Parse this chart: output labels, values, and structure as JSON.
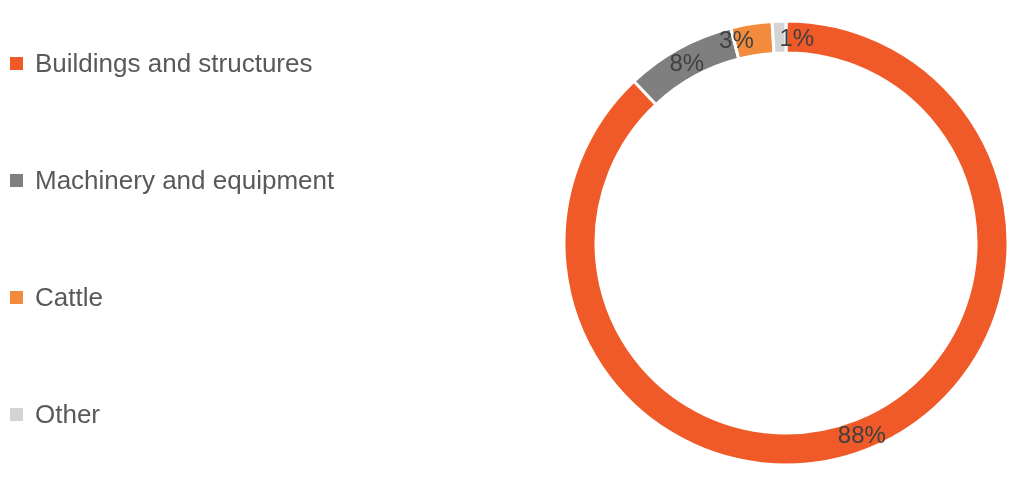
{
  "chart_data": {
    "type": "donut",
    "categories": [
      "Buildings and structures",
      "Machinery and equipment",
      "Cattle",
      "Other"
    ],
    "values": [
      88,
      8,
      3,
      1
    ],
    "value_labels": [
      "88%",
      "8%",
      "3%",
      "1%"
    ],
    "colors": [
      "#f05a28",
      "#7f7f7f",
      "#f28b3c",
      "#d4d4d4"
    ],
    "legend": "left"
  }
}
